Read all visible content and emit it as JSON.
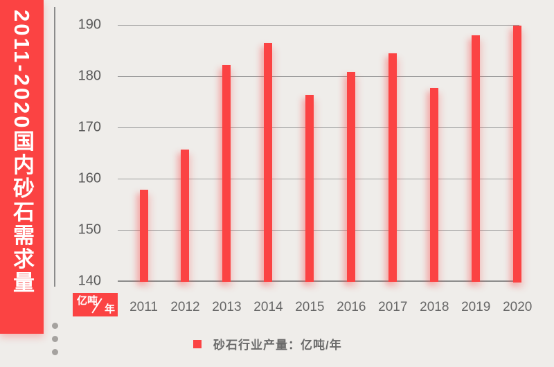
{
  "banner": {
    "title": "2011-2020国内砂石需求量"
  },
  "unit_badge": {
    "numerator": "亿吨",
    "denominator": "年"
  },
  "legend": {
    "label": "砂石行业产量：亿吨/年"
  },
  "chart_data": {
    "type": "bar",
    "title": "2011-2020国内砂石需求量",
    "categories": [
      "2011",
      "2012",
      "2013",
      "2014",
      "2015",
      "2016",
      "2017",
      "2018",
      "2019",
      "2020"
    ],
    "values": [
      158,
      165.8,
      182.2,
      186.5,
      176.4,
      180.9,
      184.5,
      177.8,
      188.1,
      190
    ],
    "series_name": "砂石行业产量",
    "ylabel": "亿吨/年",
    "xlabel": "",
    "ylim": [
      140,
      190
    ],
    "yticks": [
      140,
      150,
      160,
      170,
      180,
      190
    ],
    "grid": true,
    "legend_position": "bottom",
    "bar_color": "#fb4343"
  },
  "colors": {
    "background": "#efedea",
    "accent_red": "#fb4343",
    "gridline": "#9d9d9d",
    "axis": "#8b8b8b",
    "y_tick_text": "#585858",
    "x_tick_text": "#666666",
    "legend_text": "#6a6a6a"
  }
}
